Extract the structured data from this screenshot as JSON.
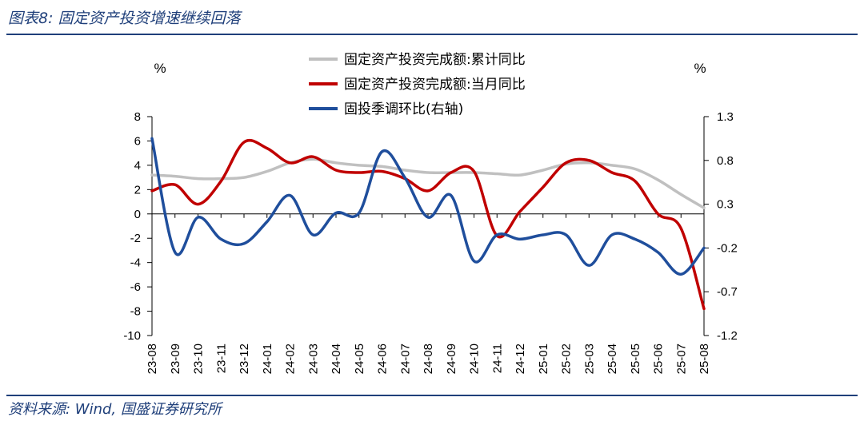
{
  "header": {
    "title": "图表8:  固定资产投资增速继续回落"
  },
  "footer": {
    "source": "资料来源:  Wind,  国盛证券研究所"
  },
  "chart_data": {
    "type": "line",
    "left_unit": "%",
    "right_unit": "%",
    "categories": [
      "23-08",
      "23-09",
      "23-10",
      "23-11",
      "23-12",
      "24-01",
      "24-02",
      "24-03",
      "24-04",
      "24-05",
      "24-06",
      "24-07",
      "24-08",
      "24-09",
      "24-10",
      "24-11",
      "24-12",
      "25-01",
      "25-02",
      "25-03",
      "25-04",
      "25-05",
      "25-06",
      "25-07",
      "25-08"
    ],
    "y_left": {
      "min": -10,
      "max": 8,
      "ticks": [
        8,
        6,
        4,
        2,
        0,
        -2,
        -4,
        -6,
        -8,
        -10
      ]
    },
    "y_right": {
      "min": -1.2,
      "max": 1.3,
      "ticks": [
        "1.3",
        "0.8",
        "0.3",
        "-0.2",
        "-0.7",
        "-1.2"
      ]
    },
    "series": [
      {
        "name": "固定资产投资完成额:累计同比",
        "axis": "left",
        "color": "#c0c0c0",
        "values": [
          3.2,
          3.1,
          2.9,
          2.9,
          3.0,
          3.5,
          4.2,
          4.5,
          4.2,
          4.0,
          3.9,
          3.6,
          3.4,
          3.4,
          3.4,
          3.3,
          3.2,
          3.6,
          4.1,
          4.2,
          4.0,
          3.7,
          2.8,
          1.6,
          0.5
        ]
      },
      {
        "name": "固定资产投资完成额:当月同比",
        "axis": "left",
        "color": "#c00000",
        "values": [
          1.9,
          2.4,
          0.8,
          2.7,
          5.9,
          5.4,
          4.2,
          4.7,
          3.6,
          3.4,
          3.5,
          2.9,
          1.9,
          3.4,
          3.5,
          -1.8,
          0.2,
          2.2,
          4.2,
          4.4,
          3.4,
          2.7,
          0,
          -1.2,
          -7.8
        ]
      },
      {
        "name": "固投季调环比(右轴)",
        "axis": "right",
        "color": "#1f4e9c",
        "values": [
          1.05,
          -0.25,
          0.15,
          -0.1,
          -0.15,
          0.1,
          0.4,
          -0.05,
          0.2,
          0.2,
          0.9,
          0.6,
          0.15,
          0.4,
          -0.35,
          -0.05,
          -0.1,
          -0.05,
          -0.05,
          -0.4,
          -0.05,
          -0.1,
          -0.25,
          -0.5,
          -0.2
        ]
      }
    ]
  }
}
